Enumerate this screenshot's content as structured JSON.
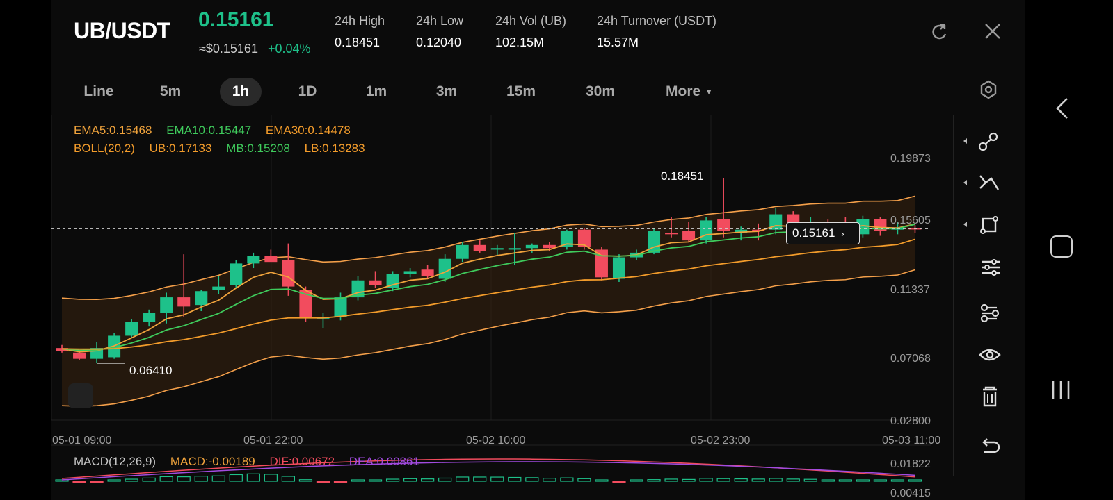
{
  "header": {
    "pair": "UB/USDT",
    "price": "0.15161",
    "usd_price": "≈$0.15161",
    "change": "+0.04%",
    "stats": [
      {
        "label": "24h High",
        "value": "0.18451"
      },
      {
        "label": "24h Low",
        "value": "0.12040"
      },
      {
        "label": "24h Vol (UB)",
        "value": "102.15M"
      },
      {
        "label": "24h Turnover (USDT)",
        "value": "15.57M"
      }
    ]
  },
  "tabs": [
    "Line",
    "5m",
    "1h",
    "1D",
    "1m",
    "3m",
    "15m",
    "30m",
    "More"
  ],
  "active_tab": "1h",
  "indicators": {
    "ema5": "EMA5:0.15468",
    "ema10": "EMA10:0.15447",
    "ema30": "EMA30:0.14478",
    "boll": "BOLL(20,2)",
    "ub": "UB:0.17133",
    "mb": "MB:0.15208",
    "lb": "LB:0.13283",
    "macd_title": "MACD(12,26,9)",
    "macd": "MACD:-0.00189",
    "dif": "DIF:0.00672",
    "dea": "DEA:0.00861"
  },
  "price_axis": [
    "0.19873",
    "0.15605",
    "0.11337",
    "0.07068",
    "0.02800"
  ],
  "time_axis": [
    "05-01 09:00",
    "05-01 22:00",
    "05-02 10:00",
    "05-02 23:00",
    "05-03 11:00"
  ],
  "macd_axis": [
    "0.01822",
    "0.00415"
  ],
  "annotations": {
    "high": "0.18451",
    "low": "0.06410",
    "last": "0.15161"
  },
  "colors": {
    "up": "#1ec18a",
    "down": "#f24c5e",
    "ema5": "#f0a33c",
    "ema10": "#3fcb5c",
    "ema30": "#f39c2b",
    "boll": "#f5a04a"
  },
  "chart_data": {
    "type": "candlestick",
    "x_label_ticks": [
      "05-01 09:00",
      "05-01 22:00",
      "05-02 10:00",
      "05-02 23:00",
      "05-03 11:00"
    ],
    "ylim": [
      0.028,
      0.19873
    ],
    "candles": [
      {
        "o": 0.074,
        "h": 0.076,
        "l": 0.071,
        "c": 0.072
      },
      {
        "o": 0.071,
        "h": 0.072,
        "l": 0.066,
        "c": 0.067
      },
      {
        "o": 0.067,
        "h": 0.078,
        "l": 0.0641,
        "c": 0.074
      },
      {
        "o": 0.068,
        "h": 0.084,
        "l": 0.067,
        "c": 0.082
      },
      {
        "o": 0.082,
        "h": 0.093,
        "l": 0.081,
        "c": 0.091
      },
      {
        "o": 0.091,
        "h": 0.099,
        "l": 0.088,
        "c": 0.097
      },
      {
        "o": 0.097,
        "h": 0.11,
        "l": 0.09,
        "c": 0.107
      },
      {
        "o": 0.107,
        "h": 0.135,
        "l": 0.094,
        "c": 0.101
      },
      {
        "o": 0.102,
        "h": 0.112,
        "l": 0.098,
        "c": 0.111
      },
      {
        "o": 0.112,
        "h": 0.121,
        "l": 0.109,
        "c": 0.114
      },
      {
        "o": 0.115,
        "h": 0.131,
        "l": 0.113,
        "c": 0.129
      },
      {
        "o": 0.129,
        "h": 0.136,
        "l": 0.126,
        "c": 0.134
      },
      {
        "o": 0.134,
        "h": 0.138,
        "l": 0.131,
        "c": 0.13
      },
      {
        "o": 0.131,
        "h": 0.142,
        "l": 0.108,
        "c": 0.114
      },
      {
        "o": 0.112,
        "h": 0.114,
        "l": 0.091,
        "c": 0.094
      },
      {
        "o": 0.094,
        "h": 0.097,
        "l": 0.087,
        "c": 0.094
      },
      {
        "o": 0.094,
        "h": 0.11,
        "l": 0.092,
        "c": 0.107
      },
      {
        "o": 0.107,
        "h": 0.121,
        "l": 0.105,
        "c": 0.118
      },
      {
        "o": 0.118,
        "h": 0.124,
        "l": 0.113,
        "c": 0.115
      },
      {
        "o": 0.113,
        "h": 0.124,
        "l": 0.111,
        "c": 0.122
      },
      {
        "o": 0.122,
        "h": 0.126,
        "l": 0.12,
        "c": 0.124
      },
      {
        "o": 0.125,
        "h": 0.128,
        "l": 0.119,
        "c": 0.121
      },
      {
        "o": 0.119,
        "h": 0.135,
        "l": 0.117,
        "c": 0.132
      },
      {
        "o": 0.132,
        "h": 0.143,
        "l": 0.13,
        "c": 0.141
      },
      {
        "o": 0.141,
        "h": 0.144,
        "l": 0.136,
        "c": 0.137
      },
      {
        "o": 0.138,
        "h": 0.141,
        "l": 0.134,
        "c": 0.139
      },
      {
        "o": 0.138,
        "h": 0.149,
        "l": 0.128,
        "c": 0.139
      },
      {
        "o": 0.139,
        "h": 0.142,
        "l": 0.136,
        "c": 0.141
      },
      {
        "o": 0.141,
        "h": 0.143,
        "l": 0.137,
        "c": 0.139
      },
      {
        "o": 0.14,
        "h": 0.151,
        "l": 0.138,
        "c": 0.15
      },
      {
        "o": 0.151,
        "h": 0.152,
        "l": 0.138,
        "c": 0.14
      },
      {
        "o": 0.138,
        "h": 0.14,
        "l": 0.118,
        "c": 0.12
      },
      {
        "o": 0.119,
        "h": 0.135,
        "l": 0.117,
        "c": 0.133
      },
      {
        "o": 0.133,
        "h": 0.138,
        "l": 0.131,
        "c": 0.136
      },
      {
        "o": 0.136,
        "h": 0.152,
        "l": 0.135,
        "c": 0.15
      },
      {
        "o": 0.149,
        "h": 0.159,
        "l": 0.146,
        "c": 0.148
      },
      {
        "o": 0.15,
        "h": 0.156,
        "l": 0.143,
        "c": 0.144
      },
      {
        "o": 0.144,
        "h": 0.159,
        "l": 0.142,
        "c": 0.157
      },
      {
        "o": 0.158,
        "h": 0.18451,
        "l": 0.146,
        "c": 0.15
      },
      {
        "o": 0.149,
        "h": 0.153,
        "l": 0.144,
        "c": 0.151
      },
      {
        "o": 0.151,
        "h": 0.155,
        "l": 0.144,
        "c": 0.15
      },
      {
        "o": 0.151,
        "h": 0.165,
        "l": 0.148,
        "c": 0.161
      },
      {
        "o": 0.161,
        "h": 0.163,
        "l": 0.15,
        "c": 0.152
      },
      {
        "o": 0.152,
        "h": 0.159,
        "l": 0.149,
        "c": 0.155
      },
      {
        "o": 0.155,
        "h": 0.158,
        "l": 0.147,
        "c": 0.152
      },
      {
        "o": 0.152,
        "h": 0.159,
        "l": 0.145,
        "c": 0.148
      },
      {
        "o": 0.148,
        "h": 0.16,
        "l": 0.146,
        "c": 0.158
      },
      {
        "o": 0.158,
        "h": 0.159,
        "l": 0.147,
        "c": 0.15
      },
      {
        "o": 0.151,
        "h": 0.156,
        "l": 0.148,
        "c": 0.152
      },
      {
        "o": 0.152,
        "h": 0.154,
        "l": 0.149,
        "c": 0.15161
      }
    ],
    "ema5": [
      0.0735,
      0.0715,
      0.0722,
      0.0754,
      0.0806,
      0.086,
      0.093,
      0.0956,
      0.1007,
      0.1051,
      0.113,
      0.12,
      0.1233,
      0.1202,
      0.1115,
      0.1057,
      0.1061,
      0.1101,
      0.1117,
      0.1151,
      0.1181,
      0.1191,
      0.1234,
      0.1292,
      0.1318,
      0.1342,
      0.1358,
      0.1375,
      0.138,
      0.1417,
      0.1411,
      0.1341,
      0.1337,
      0.1345,
      0.1397,
      0.1425,
      0.143,
      0.1477,
      0.1485,
      0.1494,
      0.1499,
      0.1536,
      0.1531,
      0.1537,
      0.1531,
      0.1514,
      0.1536,
      0.1524,
      0.1521,
      0.15468
    ],
    "ema10": [
      0.0735,
      0.0725,
      0.0727,
      0.0743,
      0.0773,
      0.0809,
      0.0857,
      0.0885,
      0.0926,
      0.0965,
      0.1024,
      0.1081,
      0.1121,
      0.1124,
      0.109,
      0.1063,
      0.1064,
      0.1084,
      0.1095,
      0.1118,
      0.114,
      0.1154,
      0.1184,
      0.1225,
      0.1251,
      0.1276,
      0.1297,
      0.1318,
      0.1332,
      0.1363,
      0.137,
      0.1339,
      0.1338,
      0.1342,
      0.1371,
      0.1391,
      0.1401,
      0.1431,
      0.1443,
      0.1456,
      0.1464,
      0.1491,
      0.1496,
      0.1506,
      0.1509,
      0.1504,
      0.1519,
      0.1515,
      0.1517,
      0.15447
    ],
    "ema30": [
      0.0735,
      0.0733,
      0.0733,
      0.0736,
      0.0747,
      0.0761,
      0.0781,
      0.0795,
      0.0816,
      0.0837,
      0.0866,
      0.0896,
      0.0922,
      0.0936,
      0.0936,
      0.0936,
      0.0946,
      0.0961,
      0.0974,
      0.099,
      0.1006,
      0.1018,
      0.1038,
      0.1062,
      0.1081,
      0.11,
      0.1118,
      0.1136,
      0.115,
      0.1172,
      0.1183,
      0.1184,
      0.1194,
      0.1205,
      0.1225,
      0.1241,
      0.1254,
      0.1275,
      0.1289,
      0.1303,
      0.1316,
      0.1334,
      0.1346,
      0.136,
      0.1371,
      0.138,
      0.1395,
      0.1403,
      0.1413,
      0.14478
    ]
  }
}
